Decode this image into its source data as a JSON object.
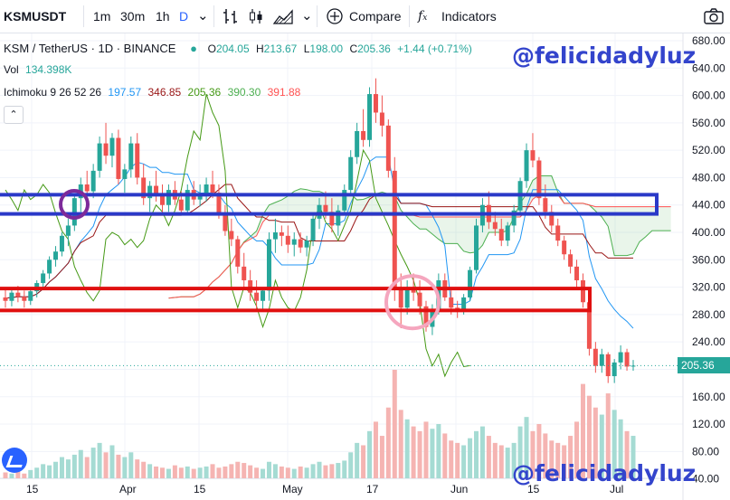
{
  "toolbar": {
    "symbol": "KSMUSDT",
    "intervals": [
      "1m",
      "30m",
      "1h",
      "D"
    ],
    "active_interval": "D",
    "compare_label": "Compare",
    "indicators_label": "Indicators"
  },
  "legend": {
    "pair": "KSM / TetherUS · 1D · BINANCE",
    "open_label": "O",
    "open": "204.05",
    "high_label": "H",
    "high": "213.67",
    "low_label": "L",
    "low": "198.00",
    "close_label": "C",
    "close": "205.36",
    "change": "+1.44 (+0.71%)",
    "vol_label": "Vol",
    "vol_value": "134.398K",
    "ichimoku_label": "Ichimoku 9 26 52 26",
    "ichi_values": [
      "197.57",
      "346.85",
      "205.36",
      "390.30",
      "391.88"
    ]
  },
  "watermark": "@felicidadyluz",
  "colors": {
    "up": "#26a69a",
    "down": "#ef5350",
    "conversion": "#2196f3",
    "base": "#991515",
    "lagging": "#459915",
    "leadA": "#4caf50",
    "leadB": "#ff5252",
    "blue_box": "#2a39c8",
    "red_box": "#e01010",
    "purple_circle": "#7d2a9a",
    "pink_circle": "#f5a6be"
  },
  "chart_data": {
    "type": "candlestick",
    "symbol": "KSMUSDT",
    "last_price": 205.36,
    "y_ticks": [
      680,
      640,
      600,
      560,
      520,
      480,
      440,
      400,
      360,
      320,
      280,
      240,
      200,
      160,
      120,
      80,
      40
    ],
    "x_ticks": [
      "15",
      "Apr",
      "15",
      "May",
      "17",
      "Jun",
      "15",
      "Jul"
    ],
    "ylim": [
      40,
      690
    ],
    "annotations": {
      "resistance_zone": [
        427,
        455
      ],
      "support_zone": [
        286,
        318
      ]
    },
    "ohlc": [
      [
        305,
        318,
        290,
        300
      ],
      [
        300,
        320,
        292,
        312
      ],
      [
        312,
        322,
        298,
        306
      ],
      [
        306,
        315,
        290,
        300
      ],
      [
        300,
        318,
        294,
        314
      ],
      [
        314,
        330,
        305,
        326
      ],
      [
        326,
        345,
        318,
        340
      ],
      [
        340,
        365,
        332,
        360
      ],
      [
        360,
        380,
        350,
        372
      ],
      [
        372,
        400,
        365,
        395
      ],
      [
        395,
        420,
        380,
        410
      ],
      [
        410,
        455,
        402,
        450
      ],
      [
        450,
        480,
        430,
        470
      ],
      [
        470,
        490,
        445,
        460
      ],
      [
        460,
        500,
        450,
        490
      ],
      [
        490,
        540,
        480,
        530
      ],
      [
        530,
        560,
        500,
        512
      ],
      [
        512,
        545,
        495,
        538
      ],
      [
        538,
        550,
        470,
        478
      ],
      [
        478,
        500,
        458,
        492
      ],
      [
        492,
        540,
        480,
        530
      ],
      [
        530,
        545,
        470,
        480
      ],
      [
        480,
        500,
        440,
        450
      ],
      [
        450,
        475,
        430,
        468
      ],
      [
        468,
        490,
        445,
        455
      ],
      [
        455,
        470,
        425,
        440
      ],
      [
        440,
        470,
        430,
        462
      ],
      [
        462,
        475,
        440,
        448
      ],
      [
        448,
        460,
        425,
        432
      ],
      [
        432,
        470,
        428,
        462
      ],
      [
        462,
        475,
        440,
        448
      ],
      [
        448,
        470,
        438,
        455
      ],
      [
        455,
        480,
        445,
        470
      ],
      [
        470,
        490,
        450,
        458
      ],
      [
        458,
        470,
        420,
        428
      ],
      [
        428,
        440,
        395,
        402
      ],
      [
        402,
        420,
        380,
        390
      ],
      [
        390,
        395,
        340,
        350
      ],
      [
        350,
        370,
        320,
        330
      ],
      [
        330,
        345,
        300,
        312
      ],
      [
        312,
        330,
        285,
        300
      ],
      [
        300,
        320,
        285,
        315
      ],
      [
        315,
        400,
        300,
        390
      ],
      [
        390,
        420,
        370,
        400
      ],
      [
        400,
        410,
        380,
        395
      ],
      [
        395,
        410,
        370,
        382
      ],
      [
        382,
        400,
        365,
        390
      ],
      [
        390,
        400,
        370,
        378
      ],
      [
        378,
        395,
        365,
        388
      ],
      [
        388,
        425,
        380,
        420
      ],
      [
        420,
        450,
        405,
        440
      ],
      [
        440,
        460,
        420,
        430
      ],
      [
        430,
        450,
        400,
        410
      ],
      [
        410,
        440,
        395,
        432
      ],
      [
        432,
        470,
        425,
        462
      ],
      [
        462,
        520,
        455,
        510
      ],
      [
        510,
        560,
        500,
        548
      ],
      [
        548,
        580,
        525,
        535
      ],
      [
        535,
        612,
        525,
        602
      ],
      [
        602,
        625,
        560,
        575
      ],
      [
        575,
        600,
        540,
        556
      ],
      [
        556,
        565,
        480,
        490
      ],
      [
        490,
        510,
        300,
        320
      ],
      [
        320,
        340,
        260,
        290
      ],
      [
        290,
        330,
        280,
        320
      ],
      [
        320,
        340,
        300,
        312
      ],
      [
        312,
        330,
        280,
        292
      ],
      [
        292,
        300,
        255,
        262
      ],
      [
        262,
        295,
        250,
        288
      ],
      [
        288,
        340,
        280,
        330
      ],
      [
        330,
        340,
        300,
        305
      ],
      [
        305,
        320,
        280,
        290
      ],
      [
        290,
        300,
        275,
        285
      ],
      [
        285,
        310,
        280,
        305
      ],
      [
        305,
        350,
        300,
        345
      ],
      [
        345,
        420,
        340,
        410
      ],
      [
        410,
        450,
        400,
        440
      ],
      [
        440,
        460,
        405,
        415
      ],
      [
        415,
        430,
        395,
        405
      ],
      [
        405,
        420,
        380,
        388
      ],
      [
        388,
        415,
        380,
        410
      ],
      [
        410,
        440,
        400,
        432
      ],
      [
        432,
        480,
        425,
        475
      ],
      [
        475,
        530,
        465,
        520
      ],
      [
        520,
        545,
        495,
        505
      ],
      [
        505,
        510,
        440,
        450
      ],
      [
        450,
        470,
        420,
        430
      ],
      [
        430,
        440,
        400,
        410
      ],
      [
        410,
        420,
        380,
        388
      ],
      [
        388,
        395,
        360,
        368
      ],
      [
        368,
        375,
        340,
        350
      ],
      [
        350,
        360,
        320,
        330
      ],
      [
        330,
        340,
        290,
        298
      ],
      [
        298,
        300,
        220,
        230
      ],
      [
        230,
        240,
        195,
        205
      ],
      [
        205,
        230,
        195,
        222
      ],
      [
        222,
        225,
        180,
        190
      ],
      [
        190,
        215,
        180,
        210
      ],
      [
        210,
        235,
        200,
        225
      ],
      [
        225,
        230,
        198,
        204
      ],
      [
        204,
        213.67,
        198,
        205.36
      ]
    ],
    "volume": [
      5,
      4,
      6,
      4,
      7,
      9,
      12,
      11,
      14,
      18,
      16,
      20,
      24,
      18,
      26,
      30,
      22,
      28,
      20,
      18,
      22,
      16,
      14,
      12,
      10,
      9,
      8,
      11,
      9,
      10,
      8,
      9,
      10,
      12,
      9,
      10,
      12,
      14,
      13,
      11,
      9,
      8,
      14,
      12,
      10,
      9,
      8,
      10,
      9,
      12,
      14,
      11,
      12,
      13,
      15,
      22,
      30,
      28,
      40,
      48,
      36,
      60,
      92,
      58,
      50,
      44,
      40,
      48,
      42,
      46,
      38,
      32,
      30,
      28,
      34,
      40,
      44,
      36,
      30,
      28,
      26,
      30,
      44,
      52,
      40,
      46,
      38,
      32,
      30,
      28,
      36,
      48,
      80,
      70,
      60,
      54,
      72,
      58,
      50,
      40,
      36
    ]
  }
}
